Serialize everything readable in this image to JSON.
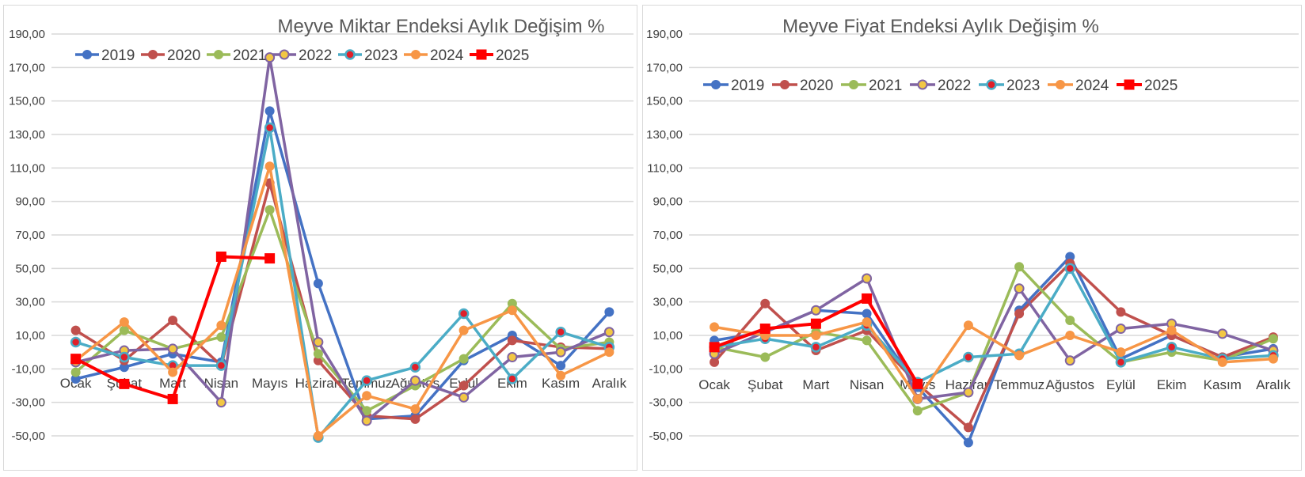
{
  "chart_data": [
    {
      "type": "line",
      "title": "Meyve Miktar Endeksi Aylık Değişim %",
      "xlabel": "",
      "ylabel": "",
      "ylim": [
        -50,
        190
      ],
      "yticks": [
        "-50,00",
        "-30,00",
        "-10,00",
        "10,00",
        "30,00",
        "50,00",
        "70,00",
        "90,00",
        "110,00",
        "130,00",
        "150,00",
        "170,00",
        "190,00"
      ],
      "grid": true,
      "legend_position": "top",
      "categories": [
        "Ocak",
        "Şubat",
        "Mart",
        "Nisan",
        "Mayıs",
        "Haziran",
        "Temmuz",
        "Ağustos",
        "Eylül",
        "Ekim",
        "Kasım",
        "Aralık"
      ],
      "series": [
        {
          "name": "2019",
          "color": "#4472C4",
          "marker": "circle",
          "values": [
            -16,
            -9,
            -1,
            -6,
            144,
            41,
            -40,
            -38,
            -5,
            10,
            -8,
            24
          ]
        },
        {
          "name": "2020",
          "color": "#C0504D",
          "marker": "circle",
          "values": [
            13,
            -5,
            19,
            -8,
            101,
            -5,
            -38,
            -40,
            -20,
            7,
            3,
            2
          ]
        },
        {
          "name": "2021",
          "color": "#9BBB59",
          "marker": "circle",
          "values": [
            -12,
            13,
            2,
            9,
            85,
            -1,
            -35,
            -20,
            -4,
            29,
            2,
            6
          ]
        },
        {
          "name": "2022",
          "color": "#8064A2",
          "marker": "circle-gold",
          "values": [
            -6,
            1,
            2,
            -30,
            176,
            6,
            -41,
            -17,
            -27,
            -3,
            0,
            12
          ]
        },
        {
          "name": "2023",
          "color": "#4BACC6",
          "marker": "circle-red",
          "values": [
            6,
            -3,
            -8,
            -8,
            134,
            -51,
            -17,
            -9,
            23,
            -16,
            12,
            3
          ]
        },
        {
          "name": "2024",
          "color": "#F79646",
          "marker": "circle",
          "values": [
            -5,
            18,
            -12,
            16,
            111,
            -50,
            -26,
            -34,
            13,
            25,
            -14,
            0
          ]
        },
        {
          "name": "2025",
          "color": "#FF0000",
          "marker": "square",
          "values": [
            -4,
            -19,
            -28,
            57,
            56,
            null,
            null,
            null,
            null,
            null,
            null,
            null
          ]
        }
      ]
    },
    {
      "type": "line",
      "title": "Meyve Fiyat Endeksi Aylık Değişim %",
      "xlabel": "",
      "ylabel": "",
      "ylim": [
        -50,
        190
      ],
      "yticks": [
        "-50,00",
        "-30,00",
        "-10,00",
        "10,00",
        "30,00",
        "50,00",
        "70,00",
        "90,00",
        "110,00",
        "130,00",
        "150,00",
        "170,00",
        "190,00"
      ],
      "grid": true,
      "legend_position": "top",
      "categories": [
        "Ocak",
        "Şubat",
        "Mart",
        "Nisan",
        "Mayıs",
        "Haziran",
        "Temmuz",
        "Ağustos",
        "Eylül",
        "Ekim",
        "Kasım",
        "Aralık"
      ],
      "series": [
        {
          "name": "2019",
          "color": "#4472C4",
          "marker": "circle",
          "values": [
            7,
            12,
            25,
            23,
            -21,
            -54,
            25,
            57,
            -4,
            10,
            -3,
            2
          ]
        },
        {
          "name": "2020",
          "color": "#C0504D",
          "marker": "circle",
          "values": [
            -6,
            29,
            1,
            13,
            -19,
            -45,
            23,
            53,
            24,
            10,
            -3,
            9
          ]
        },
        {
          "name": "2021",
          "color": "#9BBB59",
          "marker": "circle",
          "values": [
            3,
            -3,
            12,
            7,
            -35,
            -24,
            51,
            19,
            -6,
            0,
            -5,
            8
          ]
        },
        {
          "name": "2022",
          "color": "#8064A2",
          "marker": "circle-gold",
          "values": [
            -1,
            12,
            25,
            44,
            -28,
            -24,
            38,
            -5,
            14,
            17,
            11,
            1
          ]
        },
        {
          "name": "2023",
          "color": "#4BACC6",
          "marker": "circle-red",
          "values": [
            3,
            8,
            3,
            16,
            -18,
            -3,
            -1,
            50,
            -6,
            3,
            -4,
            -2
          ]
        },
        {
          "name": "2024",
          "color": "#F79646",
          "marker": "circle",
          "values": [
            15,
            10,
            10,
            18,
            -28,
            16,
            -2,
            10,
            0,
            13,
            -6,
            -4
          ]
        },
        {
          "name": "2025",
          "color": "#FF0000",
          "marker": "square",
          "values": [
            3,
            14,
            17,
            32,
            -19,
            null,
            null,
            null,
            null,
            null,
            null,
            null
          ]
        }
      ]
    }
  ]
}
